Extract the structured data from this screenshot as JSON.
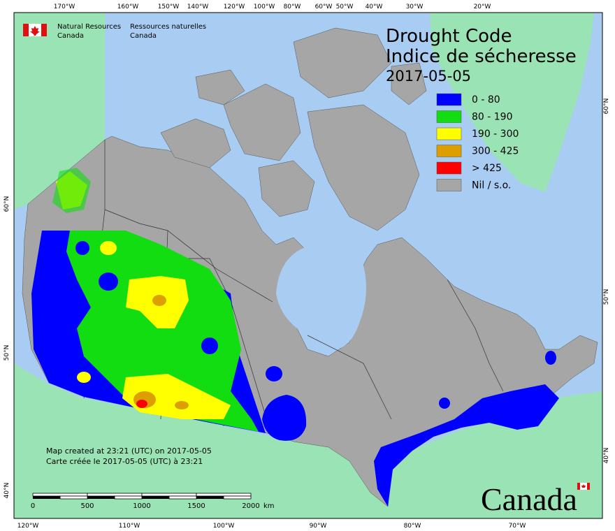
{
  "agency": {
    "en_line1": "Natural Resources",
    "en_line2": "Canada",
    "fr_line1": "Ressources naturelles",
    "fr_line2": "Canada"
  },
  "title": "Drought Code",
  "subtitle": "Indice de sécheresse",
  "date": "2017-05-05",
  "legend": [
    {
      "label": "0 - 80",
      "color": "#0000ff"
    },
    {
      "label": "80 - 190",
      "color": "#11dd11"
    },
    {
      "label": "190 - 300",
      "color": "#ffff00"
    },
    {
      "label": "300 - 425",
      "color": "#dd9f00"
    },
    {
      "label": "> 425",
      "color": "#ff0000"
    },
    {
      "label": "Nil / s.o.",
      "color": "#a6a6a6"
    }
  ],
  "top_axis": [
    "170°W",
    "160°W",
    "150°W",
    "140°W",
    "120°W",
    "100°W",
    "80°W",
    "60°W",
    "50°W",
    "40°W",
    "30°W",
    "20°W"
  ],
  "bottom_axis": [
    "120°W",
    "110°W",
    "100°W",
    "90°W",
    "80°W",
    "70°W"
  ],
  "left_axis": [
    "60°N",
    "50°N",
    "40°N"
  ],
  "right_axis": [
    "60°N",
    "50°N",
    "40°N"
  ],
  "scale_bar": {
    "labels": [
      0,
      500,
      1000,
      1500,
      2000
    ],
    "unit": "km"
  },
  "footnote": {
    "en": "Map created at 23:21 (UTC) on 2017-05-05",
    "fr": "Carte créée le 2017-05-05 (UTC) à 23:21"
  },
  "wordmark": "Canada"
}
